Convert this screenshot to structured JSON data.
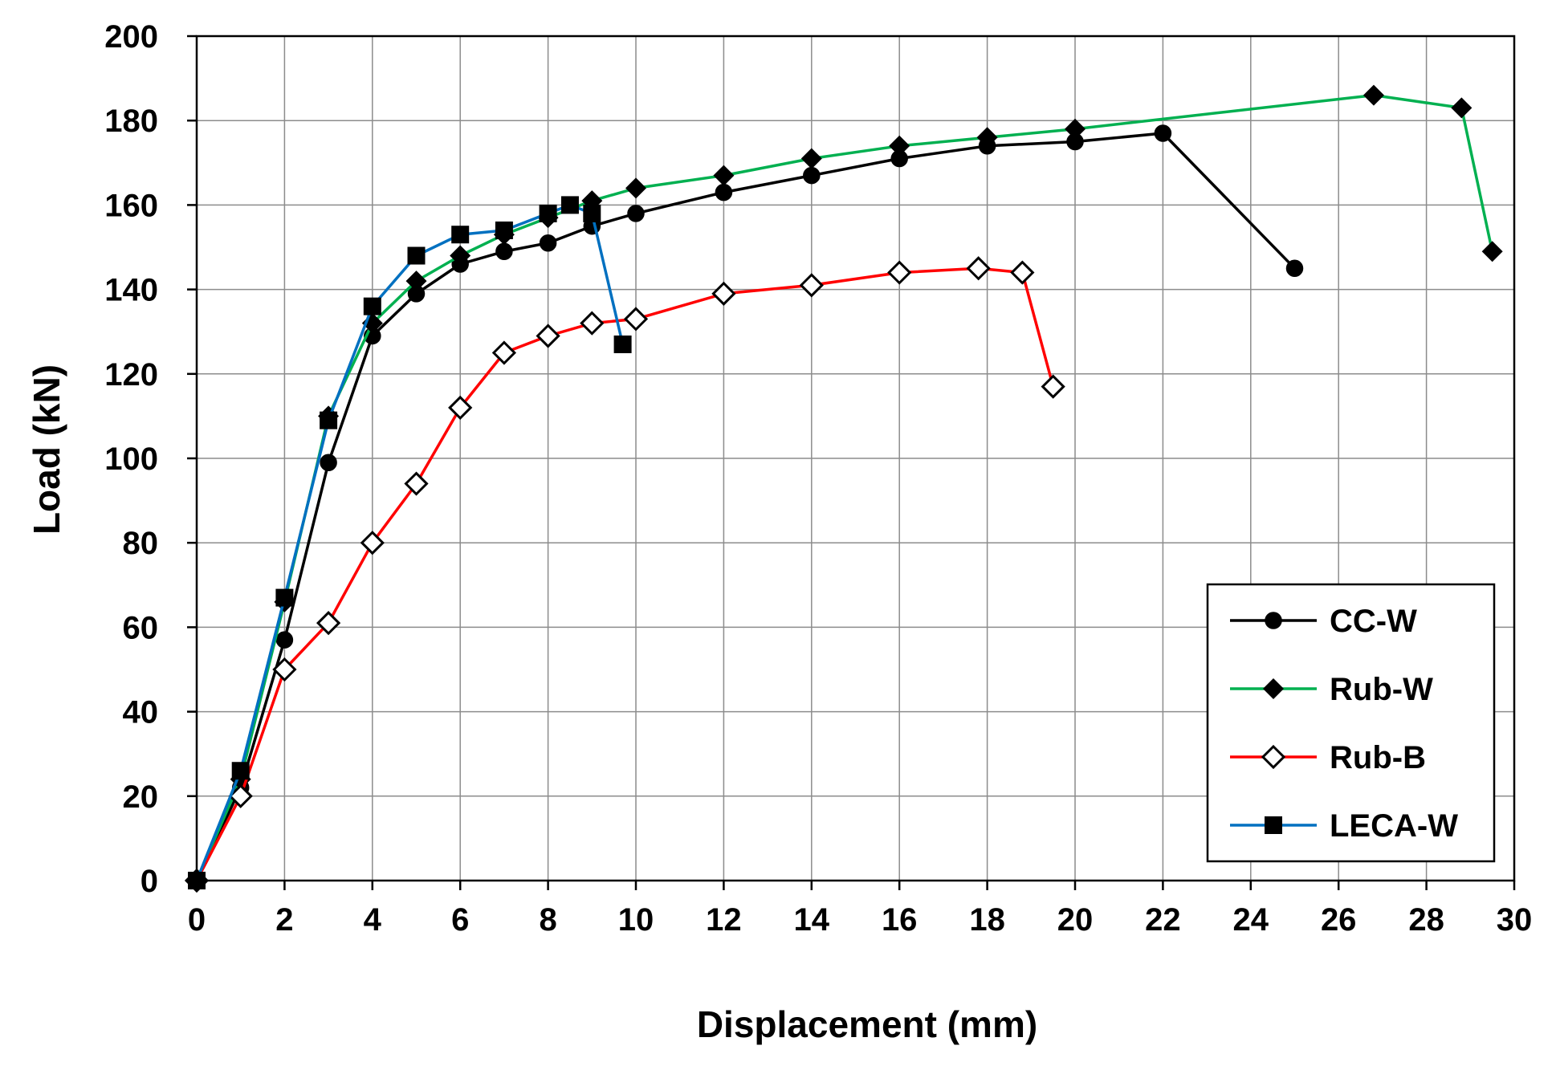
{
  "chart_data": {
    "type": "line",
    "title": "",
    "xlabel": "Displacement (mm)",
    "ylabel": "Load (kN)",
    "xlim": [
      0,
      30
    ],
    "ylim": [
      0,
      200
    ],
    "x_ticks": [
      0,
      2,
      4,
      6,
      8,
      10,
      12,
      14,
      16,
      18,
      20,
      22,
      24,
      26,
      28,
      30
    ],
    "y_ticks": [
      0,
      20,
      40,
      60,
      80,
      100,
      120,
      140,
      160,
      180,
      200
    ],
    "grid": true,
    "legend_position": "bottom-right",
    "series": [
      {
        "name": "CC-W",
        "color": "#000000",
        "marker": "filled-circle",
        "points": [
          [
            0,
            0
          ],
          [
            1,
            22
          ],
          [
            2,
            57
          ],
          [
            3,
            99
          ],
          [
            4,
            129
          ],
          [
            5,
            139
          ],
          [
            6,
            146
          ],
          [
            7,
            149
          ],
          [
            8,
            151
          ],
          [
            9,
            155
          ],
          [
            10,
            158
          ],
          [
            12,
            163
          ],
          [
            14,
            167
          ],
          [
            16,
            171
          ],
          [
            18,
            174
          ],
          [
            20,
            175
          ],
          [
            22,
            177
          ],
          [
            25,
            145
          ]
        ]
      },
      {
        "name": "Rub-W",
        "color": "#00b050",
        "marker": "filled-diamond",
        "points": [
          [
            0,
            0
          ],
          [
            1,
            24
          ],
          [
            2,
            66
          ],
          [
            3,
            110
          ],
          [
            4,
            132
          ],
          [
            5,
            142
          ],
          [
            6,
            148
          ],
          [
            7,
            153
          ],
          [
            8,
            157
          ],
          [
            9,
            161
          ],
          [
            10,
            164
          ],
          [
            12,
            167
          ],
          [
            14,
            171
          ],
          [
            16,
            174
          ],
          [
            18,
            176
          ],
          [
            20,
            178
          ],
          [
            26.8,
            186
          ],
          [
            28.8,
            183
          ],
          [
            29.5,
            149
          ]
        ]
      },
      {
        "name": "Rub-B",
        "color": "#ff0000",
        "marker": "open-diamond",
        "points": [
          [
            0,
            0
          ],
          [
            1,
            20
          ],
          [
            2,
            50
          ],
          [
            3,
            61
          ],
          [
            4,
            80
          ],
          [
            5,
            94
          ],
          [
            6,
            112
          ],
          [
            7,
            125
          ],
          [
            8,
            129
          ],
          [
            9,
            132
          ],
          [
            10,
            133
          ],
          [
            12,
            139
          ],
          [
            14,
            141
          ],
          [
            16,
            144
          ],
          [
            17.8,
            145
          ],
          [
            18.8,
            144
          ],
          [
            19.5,
            117
          ]
        ]
      },
      {
        "name": "LECA-W",
        "color": "#0070c0",
        "marker": "filled-square",
        "points": [
          [
            0,
            0
          ],
          [
            1,
            26
          ],
          [
            2,
            67
          ],
          [
            3,
            109
          ],
          [
            4,
            136
          ],
          [
            5,
            148
          ],
          [
            6,
            153
          ],
          [
            7,
            154
          ],
          [
            8,
            158
          ],
          [
            8.5,
            160
          ],
          [
            9,
            158
          ],
          [
            9.7,
            127
          ]
        ]
      }
    ]
  }
}
